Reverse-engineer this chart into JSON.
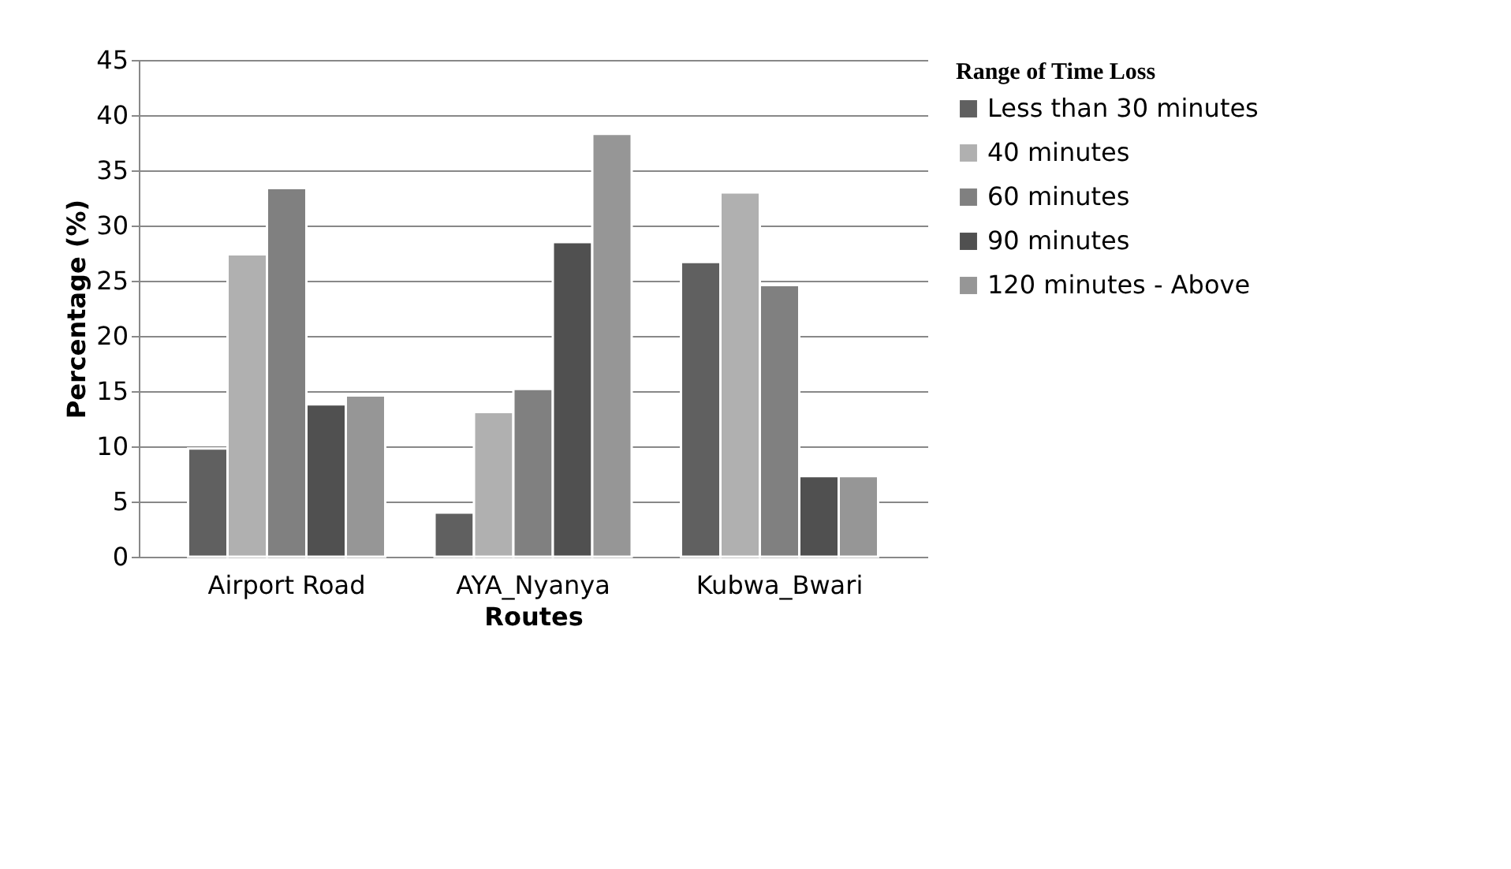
{
  "chart_data": {
    "type": "bar",
    "xlabel": "Routes",
    "ylabel": "Percentage (%)",
    "legend_title": "Range of Time Loss",
    "categories": [
      "Airport Road",
      "AYA_Nyanya",
      "Kubwa_Bwari"
    ],
    "series": [
      {
        "name": "Less than 30 minutes",
        "color": "#606060",
        "values": [
          9.8,
          4.0,
          26.7
        ]
      },
      {
        "name": "40 minutes",
        "color": "#b0b0b0",
        "values": [
          27.4,
          13.1,
          33.0
        ]
      },
      {
        "name": "60 minutes",
        "color": "#808080",
        "values": [
          33.4,
          15.2,
          24.6
        ]
      },
      {
        "name": "90 minutes",
        "color": "#505050",
        "values": [
          13.8,
          28.5,
          7.3
        ]
      },
      {
        "name": "120 minutes - Above",
        "color": "#969696",
        "values": [
          14.6,
          38.3,
          7.3
        ]
      }
    ],
    "ylim": [
      0,
      45
    ],
    "yticks": [
      0,
      5,
      10,
      15,
      20,
      25,
      30,
      35,
      40,
      45
    ],
    "grid": "y",
    "legend": "right"
  }
}
